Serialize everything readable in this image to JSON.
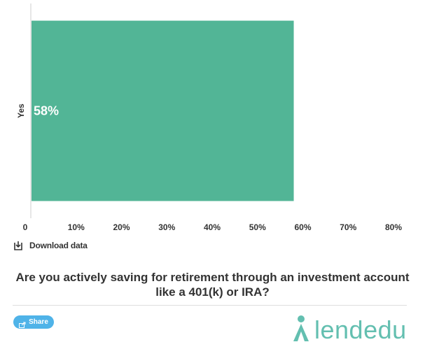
{
  "chart_data": {
    "type": "bar",
    "orientation": "horizontal",
    "categories": [
      "Yes"
    ],
    "values": [
      58
    ],
    "data_labels": [
      "58%"
    ],
    "xlim": [
      0,
      80
    ],
    "x_ticks": [
      "0",
      "10%",
      "20%",
      "30%",
      "40%",
      "50%",
      "60%",
      "70%",
      "80%"
    ],
    "x_tick_values": [
      0,
      10,
      20,
      30,
      40,
      50,
      60,
      70,
      80
    ],
    "bar_color": "#52b596",
    "grid": false
  },
  "download": {
    "label": "Download data"
  },
  "question": {
    "text": "Are you actively saving for retirement through an investment account like a 401(k) or IRA?"
  },
  "share": {
    "label": "Share"
  },
  "logo": {
    "text": "lendedu",
    "color": "#63bfb0"
  }
}
